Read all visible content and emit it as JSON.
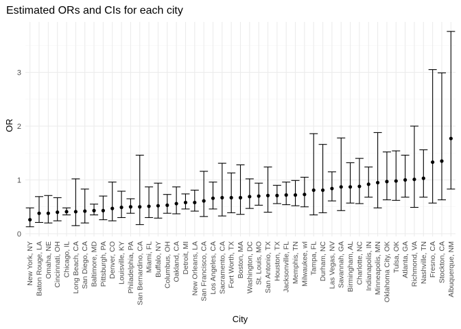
{
  "chart_data": {
    "type": "scatter",
    "title": "Estimated ORs and CIs for each city",
    "xlabel": "City",
    "ylabel": "OR",
    "ylim": [
      0,
      3.85
    ],
    "yticks": [
      0,
      1,
      2,
      3
    ],
    "grid": true,
    "legend": "none",
    "colors": {
      "point": "#000000",
      "grid": "#ebebeb",
      "tick_text": "#4d4d4d"
    },
    "categories": [
      "New York, NY",
      "Baton Rouge, LA",
      "Omaha, NE",
      "Cincinnati, OH",
      "Chicago, IL",
      "Long Beach, CA",
      "San Diego, CA",
      "Baltimore, MD",
      "Pittsburgh, PA",
      "Denver, CO",
      "Louisville, KY",
      "Philadelphia, PA",
      "San Bernardino, CA",
      "Miami, FL",
      "Buffalo, NY",
      "Columbus, OH",
      "Oakland, CA",
      "Detroit, MI",
      "New Orleans, LA",
      "San Francisco, CA",
      "Los Angeles, CA",
      "Sacramento, CA",
      "Fort Worth, TX",
      "Boston, MA",
      "Washington, DC",
      "St. Louis, MO",
      "San Antonio, TX",
      "Houston, TX",
      "Jacksonville, FL",
      "Memphis, TN",
      "Milwaukee, wI",
      "Tampa, FL",
      "Durham, NC",
      "Las Vegas, NV",
      "Savannah, GA",
      "Birmingham, AL",
      "Charlotte, NC",
      "Indianapolis, IN",
      "Minneapolis, MN",
      "Oklahoma City, OK",
      "Tulsa, OK",
      "Atlanta, GA",
      "Richmond, VA",
      "Nashville, TN",
      "Fresno, CA",
      "Stockton, CA",
      "Albuquerque, NM"
    ],
    "estimate": [
      0.26,
      0.38,
      0.38,
      0.4,
      0.41,
      0.41,
      0.42,
      0.43,
      0.43,
      0.47,
      0.49,
      0.5,
      0.5,
      0.51,
      0.52,
      0.53,
      0.56,
      0.58,
      0.58,
      0.61,
      0.66,
      0.67,
      0.67,
      0.67,
      0.69,
      0.7,
      0.71,
      0.71,
      0.72,
      0.72,
      0.73,
      0.81,
      0.81,
      0.84,
      0.87,
      0.87,
      0.88,
      0.92,
      0.95,
      0.97,
      0.98,
      1.0,
      1.01,
      1.03,
      1.33,
      1.35,
      1.77
    ],
    "ci_low": [
      0.13,
      0.21,
      0.2,
      0.24,
      0.35,
      0.15,
      0.2,
      0.35,
      0.26,
      0.24,
      0.3,
      0.38,
      0.17,
      0.3,
      0.29,
      0.38,
      0.37,
      0.46,
      0.42,
      0.32,
      0.46,
      0.33,
      0.39,
      0.36,
      0.47,
      0.53,
      0.4,
      0.56,
      0.54,
      0.52,
      0.5,
      0.35,
      0.39,
      0.61,
      0.43,
      0.57,
      0.56,
      0.68,
      0.48,
      0.63,
      0.62,
      0.68,
      0.49,
      0.68,
      0.57,
      0.63,
      0.83
    ],
    "ci_high": [
      0.48,
      0.69,
      0.71,
      0.67,
      0.48,
      1.02,
      0.83,
      0.55,
      0.7,
      0.96,
      0.79,
      0.65,
      1.46,
      0.87,
      0.94,
      0.73,
      0.87,
      0.74,
      0.81,
      1.16,
      0.96,
      1.31,
      1.13,
      1.28,
      1.02,
      0.94,
      1.24,
      0.9,
      0.96,
      0.99,
      1.05,
      1.86,
      1.66,
      1.15,
      1.78,
      1.32,
      1.4,
      1.24,
      1.88,
      1.52,
      1.54,
      1.46,
      2.0,
      1.56,
      3.05,
      2.99,
      3.76
    ]
  }
}
